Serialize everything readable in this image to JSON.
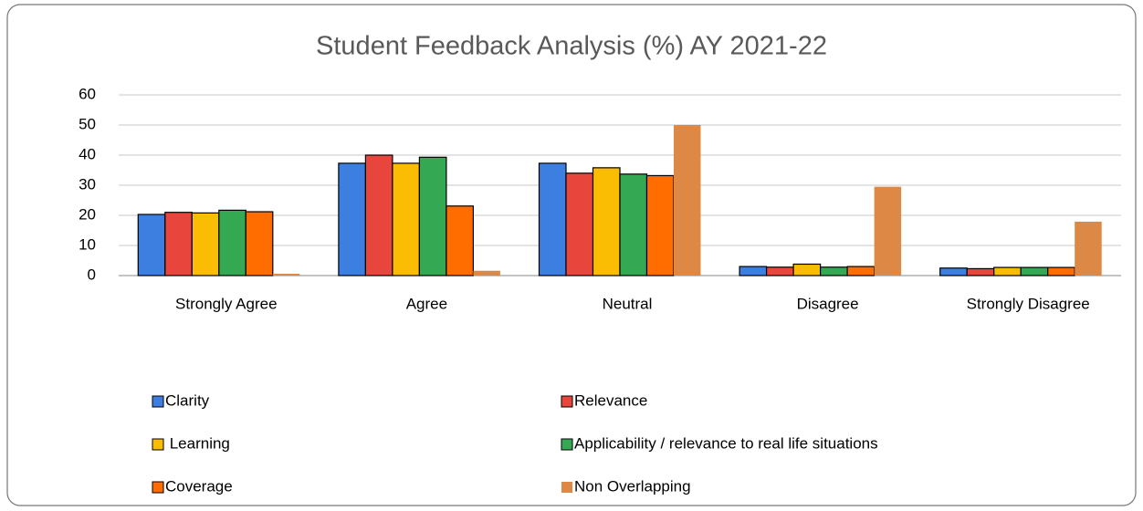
{
  "chart_data": {
    "type": "bar",
    "title": "Student Feedback Analysis (%) AY 2021-22",
    "categories": [
      "Strongly Agree",
      "Agree",
      "Neutral",
      "Disagree",
      "Strongly Disagree"
    ],
    "series": [
      {
        "name": "Clarity",
        "color": "#3d7fe0",
        "values": [
          20.3,
          37.3,
          37.3,
          3.0,
          2.5
        ]
      },
      {
        "name": "Relevance",
        "color": "#e8453c",
        "values": [
          21.0,
          40.0,
          34.0,
          2.8,
          2.3
        ]
      },
      {
        "name": " Learning",
        "color": "#fbbc04",
        "values": [
          20.8,
          37.3,
          35.8,
          3.8,
          2.7
        ]
      },
      {
        "name": "Applicability / relevance to real life situations",
        "color": "#34a853",
        "values": [
          21.7,
          39.3,
          33.7,
          2.8,
          2.7
        ]
      },
      {
        "name": "Coverage",
        "color": "#ff6d01",
        "values": [
          21.2,
          23.1,
          33.2,
          3.0,
          2.7
        ]
      },
      {
        "name": "Non Overlapping",
        "color": "#dd8844",
        "values": [
          0.6,
          1.6,
          50.0,
          29.5,
          17.9
        ]
      }
    ],
    "ylim": [
      0,
      60
    ],
    "yticks": [
      0,
      10,
      20,
      30,
      40,
      50,
      60
    ],
    "grid": true,
    "legend": "bottom"
  }
}
